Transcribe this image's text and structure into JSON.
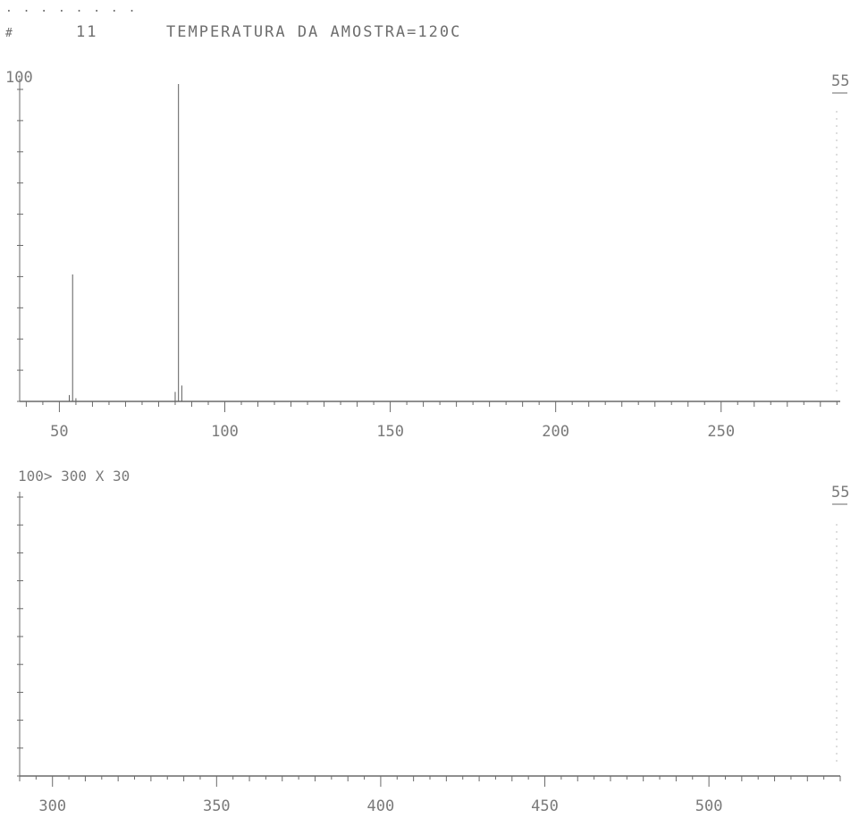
{
  "header": {
    "dots": ". . . . . . . .",
    "scan_marker": "#",
    "scan_number": "11",
    "title": "TEMPERATURA DA AMOSTRA=120C"
  },
  "chart_data": [
    {
      "type": "bar",
      "title": "",
      "xlabel": "",
      "ylabel": "",
      "xlim": [
        38,
        286
      ],
      "ylim": [
        0,
        100
      ],
      "y_top_label": "100",
      "right_label": "55",
      "x_ticks": [
        50,
        100,
        150,
        200,
        250
      ],
      "x_tick_labels": [
        "50",
        "100",
        "150",
        "200",
        "250"
      ],
      "grid": false,
      "series": [
        {
          "x": [
            53,
            54,
            55,
            85,
            86,
            87
          ],
          "values": [
            2,
            40,
            1,
            3,
            100,
            5
          ]
        }
      ]
    },
    {
      "type": "bar",
      "title": "",
      "scale_label": "100> 300 X 30",
      "xlabel": "",
      "ylabel": "",
      "xlim": [
        290,
        540
      ],
      "ylim": [
        0,
        100
      ],
      "right_label": "55",
      "x_ticks": [
        300,
        350,
        400,
        450,
        500
      ],
      "x_tick_labels": [
        "300",
        "350",
        "400",
        "450",
        "500"
      ],
      "grid": false,
      "series": [
        {
          "x": [],
          "values": []
        }
      ]
    }
  ],
  "colors": {
    "ink": "#7a7a7a",
    "axis": "#6a6a6a",
    "peak": "#5e5e5e"
  }
}
